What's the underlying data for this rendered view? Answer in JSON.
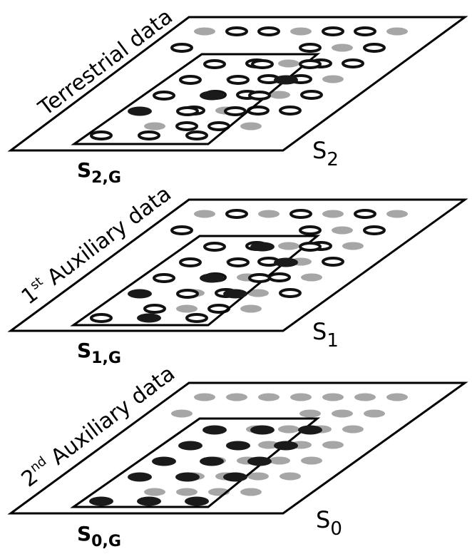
{
  "layers": [
    {
      "title": "Terrestrial data",
      "set_main": "S",
      "set_main_sub": "2",
      "set_sub": "S",
      "set_sub_sub": "2,G",
      "outside": [
        "g",
        "o",
        "o",
        "g",
        "o",
        "o",
        "o",
        "g",
        "o",
        "g",
        "o",
        "o",
        "g",
        "g",
        "o",
        "o",
        "g",
        "o",
        "o",
        "o",
        "o",
        "g",
        "o",
        "g",
        "g",
        "o"
      ],
      "inner": [
        [
          "o",
          "o",
          "o"
        ],
        [
          "o",
          "o",
          "b"
        ],
        [
          "o",
          "b",
          "o"
        ],
        [
          "b",
          "o",
          "o"
        ],
        [
          "o",
          "o",
          "o"
        ]
      ]
    },
    {
      "title": "1st Auxiliary data",
      "title_base": "1",
      "title_sup": "st",
      "title_rest": " Auxiliary data",
      "set_main": "S",
      "set_main_sub": "1",
      "set_sub": "S",
      "set_sub_sub": "1,G",
      "inner": [
        [
          "o",
          "b",
          "o"
        ],
        [
          "o",
          "o",
          "b"
        ],
        [
          "o",
          "b",
          "o"
        ],
        [
          "b",
          "o",
          "b"
        ],
        [
          "o",
          "b",
          "o"
        ]
      ]
    },
    {
      "title": "2nd Auxiliary data",
      "title_base": "2",
      "title_sup": "nd",
      "title_rest": " Auxiliary data",
      "set_main": "S",
      "set_main_sub": "0",
      "set_sub": "S",
      "set_sub_sub": "0,G",
      "inner": [
        [
          "b",
          "b",
          "b"
        ],
        [
          "b",
          "b",
          "b"
        ],
        [
          "b",
          "b",
          "b"
        ],
        [
          "b",
          "b",
          "b"
        ],
        [
          "b",
          "b",
          "b"
        ]
      ]
    }
  ]
}
